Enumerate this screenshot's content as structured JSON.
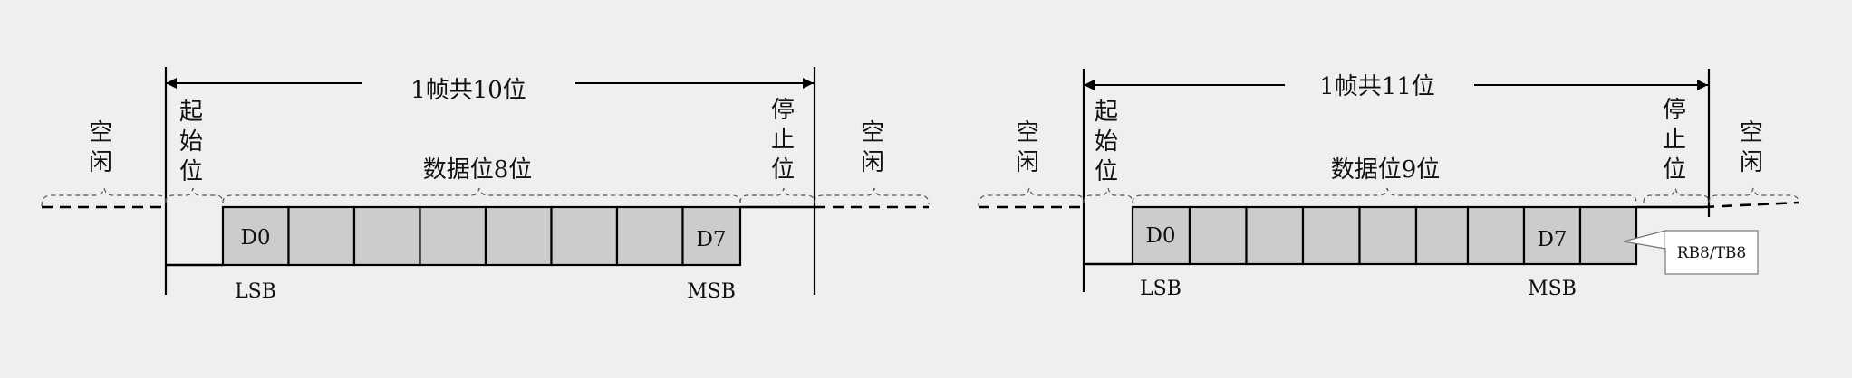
{
  "frames": [
    {
      "frame_label": "1帧共10位",
      "idle_left": [
        "空",
        "闲"
      ],
      "start_bit": [
        "起",
        "始",
        "位"
      ],
      "data_label": "数据位8位",
      "stop_bit": [
        "停",
        "止",
        "位"
      ],
      "idle_right": [
        "空",
        "闲"
      ],
      "cells": [
        "D0",
        "",
        "",
        "",
        "",
        "",
        "",
        "D7"
      ],
      "lsb": "LSB",
      "msb": "MSB"
    },
    {
      "frame_label": "1帧共11位",
      "idle_left": [
        "空",
        "闲"
      ],
      "start_bit": [
        "起",
        "始",
        "位"
      ],
      "data_label": "数据位9位",
      "stop_bit": [
        "停",
        "止",
        "位"
      ],
      "idle_right": [
        "空",
        "闲"
      ],
      "cells": [
        "D0",
        "",
        "",
        "",
        "",
        "",
        "",
        "D7",
        ""
      ],
      "lsb": "LSB",
      "msb": "MSB",
      "callout": "RB8/TB8"
    }
  ]
}
